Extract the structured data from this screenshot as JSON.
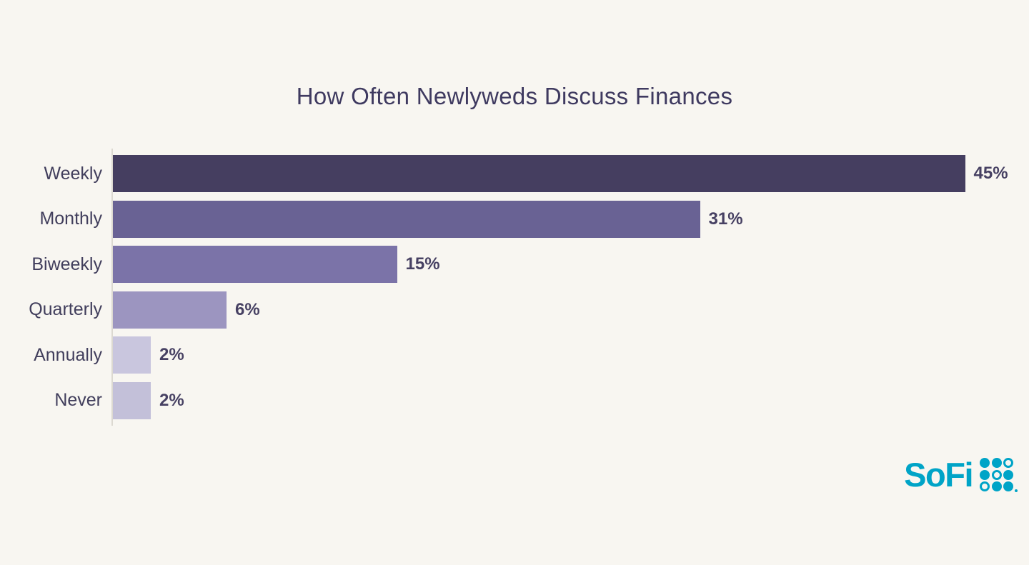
{
  "background_color": "#f8f6f1",
  "chart_data": {
    "type": "bar",
    "orientation": "horizontal",
    "title": "How Often Newlyweds Discuss Finances",
    "categories": [
      "Weekly",
      "Monthly",
      "Biweekly",
      "Quarterly",
      "Annually",
      "Never"
    ],
    "values": [
      45,
      31,
      15,
      6,
      2,
      2
    ],
    "value_labels": [
      "45%",
      "31%",
      "15%",
      "6%",
      "2%",
      "2%"
    ],
    "bar_colors": [
      "#453e60",
      "#696294",
      "#7b73a8",
      "#9c95c0",
      "#c9c6de",
      "#c3c0d9"
    ],
    "xlim": [
      0,
      45
    ],
    "grid": false,
    "legend": false,
    "value_label_position": "outside-end",
    "style": {
      "title_color": "#3f3a60",
      "category_label_color": "#413e5c",
      "value_label_color": "#474163",
      "axis_line_color": "#dcd9d1"
    }
  },
  "branding": {
    "logo_text": "SoFi",
    "logo_color": "#00a4c7",
    "dot_grid": [
      [
        "filled",
        "filled",
        "open"
      ],
      [
        "filled",
        "open",
        "filled"
      ],
      [
        "open",
        "filled",
        "filled"
      ]
    ]
  }
}
